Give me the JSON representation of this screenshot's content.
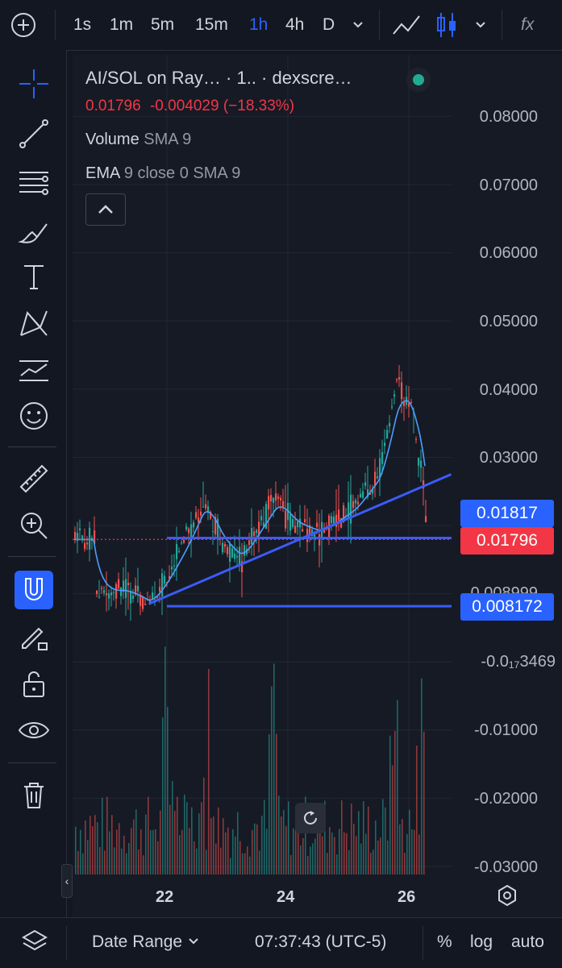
{
  "toolbar": {
    "add_icon": "plus-circle-icon",
    "intervals": [
      "1s",
      "1m",
      "5m",
      "15m",
      "1h",
      "4h",
      "D"
    ],
    "active_interval": "1h",
    "indicator_label": "fx"
  },
  "legend": {
    "title": "AI/SOL on Ray…",
    "interval": "· 1.. ·",
    "source": "dexscre…",
    "price": "0.01796",
    "change": "-0.004029",
    "change_pct": "(−18.33%)",
    "volume_name": "Volume",
    "volume_params": "SMA 9",
    "ema_name": "EMA",
    "ema_params": "9 close 0 SMA 9"
  },
  "y_axis": {
    "ticks": [
      "0.08000",
      "0.07000",
      "0.06000",
      "0.05000",
      "0.04000",
      "0.03000",
      "0.008999",
      "-0.0₁₇3469",
      "-0.01000",
      "-0.02000",
      "-0.03000"
    ]
  },
  "price_labels": {
    "line_upper": "0.01817",
    "current": "0.01796",
    "line_lower": "0.008172"
  },
  "x_axis": {
    "ticks": [
      "22",
      "24",
      "26"
    ]
  },
  "bottom": {
    "date_range": "Date Range",
    "time": "07:37:43 (UTC-5)",
    "percent": "%",
    "log": "log",
    "auto": "auto"
  },
  "colors": {
    "up": "#26a69a",
    "down": "#ef5350",
    "ema": "#2962ff",
    "line": "#3b5cf6",
    "label_blue": "#2962ff",
    "label_red": "#f23645"
  },
  "chart_data": {
    "type": "candlestick",
    "title": "AI/SOL on Ray…",
    "xlabel": "",
    "ylabel": "",
    "x_ticks": [
      "22",
      "24",
      "26"
    ],
    "ylim": [
      -0.03,
      0.085
    ],
    "close_path": [
      {
        "x": "20.8",
        "y": 0.0095
      },
      {
        "x": "21.3",
        "y": 0.0105
      },
      {
        "x": "21.7",
        "y": 0.0085
      },
      {
        "x": "22.0",
        "y": 0.013
      },
      {
        "x": "22.3",
        "y": 0.018
      },
      {
        "x": "22.6",
        "y": 0.024
      },
      {
        "x": "22.9",
        "y": 0.017
      },
      {
        "x": "23.2",
        "y": 0.015
      },
      {
        "x": "23.5",
        "y": 0.02
      },
      {
        "x": "23.8",
        "y": 0.024
      },
      {
        "x": "24.1",
        "y": 0.02
      },
      {
        "x": "24.5",
        "y": 0.019
      },
      {
        "x": "24.8",
        "y": 0.021
      },
      {
        "x": "25.1",
        "y": 0.023
      },
      {
        "x": "25.5",
        "y": 0.028
      },
      {
        "x": "25.8",
        "y": 0.041
      },
      {
        "x": "26.0",
        "y": 0.038
      },
      {
        "x": "26.2",
        "y": 0.028
      },
      {
        "x": "26.3",
        "y": 0.01796
      }
    ],
    "last_price": 0.01796,
    "horizontal_lines": [
      0.01817,
      0.008172
    ],
    "trendline": [
      {
        "x": "21.7",
        "y": 0.0085
      },
      {
        "x": "26.7",
        "y": 0.0275
      }
    ]
  }
}
